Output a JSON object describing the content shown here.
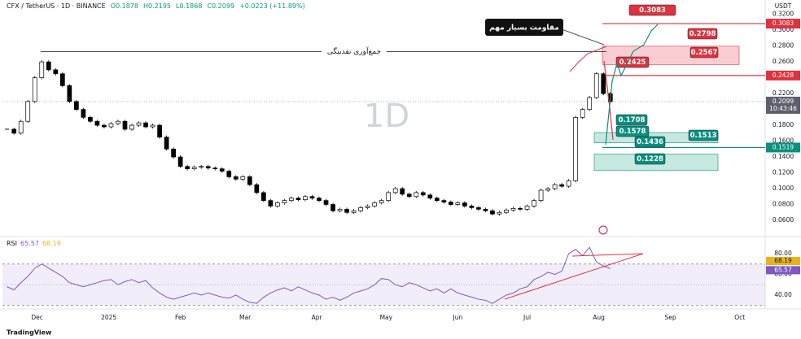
{
  "header": {
    "symbol": "CFX / TetherUS · 1D · BINANCE",
    "ohlc": [
      "O0.1878",
      "H0.2195",
      "L0.1868",
      "C0.2099"
    ],
    "change": "+0.0223 (+11.89%)"
  },
  "footer": "TradingView",
  "chart_data": [
    {
      "type": "candlestick",
      "watermark": "1D",
      "currency": "USDT",
      "up_color": "#ffffff",
      "down_color": "#000000",
      "x": [
        17,
        20,
        23,
        26,
        29,
        32,
        35,
        38,
        41,
        44,
        47,
        50,
        53,
        56,
        59,
        62,
        65,
        68,
        71,
        74,
        77,
        80,
        83,
        86,
        89,
        92,
        95,
        98,
        101,
        104,
        107,
        110,
        113,
        116,
        119,
        122,
        125,
        128,
        131,
        134,
        137,
        140,
        143,
        146,
        149,
        152,
        155,
        158,
        161,
        164,
        167,
        170,
        173,
        176,
        179,
        182,
        185,
        188,
        191,
        194,
        197,
        200,
        203,
        206,
        209,
        212,
        215,
        218,
        221,
        224,
        227,
        230,
        233,
        236,
        239,
        242,
        245,
        248,
        251,
        254,
        257,
        260,
        263,
        266,
        269,
        272,
        275,
        278
      ],
      "values": [
        0.175,
        0.17,
        0.185,
        0.21,
        0.24,
        0.26,
        0.25,
        0.245,
        0.23,
        0.21,
        0.2,
        0.19,
        0.185,
        0.18,
        0.178,
        0.182,
        0.185,
        0.175,
        0.18,
        0.183,
        0.178,
        0.18,
        0.165,
        0.15,
        0.14,
        0.128,
        0.125,
        0.127,
        0.128,
        0.126,
        0.125,
        0.122,
        0.115,
        0.112,
        0.115,
        0.105,
        0.095,
        0.085,
        0.078,
        0.082,
        0.085,
        0.088,
        0.086,
        0.09,
        0.088,
        0.085,
        0.08,
        0.072,
        0.074,
        0.07,
        0.072,
        0.076,
        0.078,
        0.082,
        0.085,
        0.095,
        0.1,
        0.093,
        0.09,
        0.095,
        0.092,
        0.088,
        0.085,
        0.083,
        0.08,
        0.082,
        0.078,
        0.076,
        0.074,
        0.072,
        0.068,
        0.07,
        0.073,
        0.075,
        0.074,
        0.078,
        0.085,
        0.098,
        0.1,
        0.105,
        0.103,
        0.11,
        0.19,
        0.2,
        0.215,
        0.245,
        0.22,
        0.2099
      ],
      "xlim": [
        15,
        345
      ],
      "xticks": [
        {
          "value": 30,
          "label": "Dec"
        },
        {
          "value": 61,
          "label": "2025"
        },
        {
          "value": 92,
          "label": "Feb"
        },
        {
          "value": 120,
          "label": "Mar"
        },
        {
          "value": 151,
          "label": "Apr"
        },
        {
          "value": 181,
          "label": "May"
        },
        {
          "value": 212,
          "label": "Jun"
        },
        {
          "value": 242,
          "label": "Jul"
        },
        {
          "value": 273,
          "label": "Aug"
        },
        {
          "value": 304,
          "label": "Sep"
        },
        {
          "value": 334,
          "label": "Oct"
        }
      ],
      "ylim": [
        0.0405,
        0.333
      ],
      "yticks": [
        {
          "value": 0.06,
          "label": "0.0600"
        },
        {
          "value": 0.08,
          "label": "0.0800"
        },
        {
          "value": 0.1,
          "label": "0.1000"
        },
        {
          "value": 0.12,
          "label": "0.1200"
        },
        {
          "value": 0.14,
          "label": "0.1400"
        },
        {
          "value": 0.16,
          "label": "0.1600"
        },
        {
          "value": 0.18,
          "label": "0.1800"
        },
        {
          "value": 0.22,
          "label": "0.2200"
        },
        {
          "value": 0.24,
          "label": "0.2400"
        },
        {
          "value": 0.26,
          "label": "0.2600"
        },
        {
          "value": 0.28,
          "label": "0.2800"
        },
        {
          "value": 0.3,
          "label": "0.3000"
        },
        {
          "value": 0.32,
          "label": "0.3200"
        }
      ],
      "hline": {
        "value": 0.273,
        "label": "جمع‌آوری نقدینگی"
      },
      "callout": "مقاومت بسیار مهم",
      "zones": [
        {
          "top": 0.2798,
          "bottom": 0.2567,
          "color": "#f9cdd2"
        },
        {
          "top": 0.1708,
          "bottom": 0.1578,
          "color": "#c5e8e1"
        },
        {
          "top": 0.1436,
          "bottom": 0.1228,
          "color": "#c5e8e1"
        }
      ],
      "price_lines": [
        {
          "value": 0.3083,
          "color": "#e0323e"
        },
        {
          "value": 0.2428,
          "color": "#e0323e"
        },
        {
          "value": 0.1519,
          "color": "#0b8f7e"
        }
      ],
      "last_price": 0.2099,
      "countdown": "10:43:46",
      "targets": [
        {
          "value": 0.3083,
          "color": "#e0323e"
        },
        {
          "value": 0.2798,
          "color": "#e0323e"
        },
        {
          "value": 0.2567,
          "color": "#e0323e"
        },
        {
          "value": 0.2425,
          "color": "#e0323e"
        },
        {
          "value": 0.1708,
          "color": "#0b8f7e"
        },
        {
          "value": 0.1578,
          "color": "#0b8f7e"
        },
        {
          "value": 0.1513,
          "color": "#0b8f7e"
        },
        {
          "value": 0.1436,
          "color": "#0b8f7e"
        },
        {
          "value": 0.1228,
          "color": "#0b8f7e"
        }
      ]
    },
    {
      "type": "line",
      "title": "RSI",
      "latest": 65.57,
      "ma": 68.19,
      "ma_color": "#e8b21c",
      "x": [
        17,
        20,
        23,
        26,
        29,
        32,
        35,
        38,
        41,
        44,
        47,
        50,
        53,
        56,
        59,
        62,
        65,
        68,
        71,
        74,
        77,
        80,
        83,
        86,
        89,
        92,
        95,
        98,
        101,
        104,
        107,
        110,
        113,
        116,
        119,
        122,
        125,
        128,
        131,
        134,
        137,
        140,
        143,
        146,
        149,
        152,
        155,
        158,
        161,
        164,
        167,
        170,
        173,
        176,
        179,
        182,
        185,
        188,
        191,
        194,
        197,
        200,
        203,
        206,
        209,
        212,
        215,
        218,
        221,
        224,
        227,
        230,
        233,
        236,
        239,
        242,
        245,
        248,
        251,
        254,
        257,
        260,
        263,
        266,
        269,
        272,
        275,
        278
      ],
      "series": [
        {
          "name": "RSI",
          "color": "#7e57c2",
          "values": [
            48,
            45,
            52,
            58,
            66,
            70,
            66,
            62,
            58,
            52,
            50,
            48,
            50,
            52,
            54,
            55,
            50,
            53,
            55,
            52,
            54,
            47,
            42,
            38,
            36,
            38,
            40,
            42,
            40,
            42,
            40,
            38,
            37,
            40,
            36,
            33,
            32,
            38,
            42,
            45,
            47,
            44,
            48,
            45,
            42,
            40,
            36,
            38,
            35,
            38,
            42,
            44,
            46,
            50,
            56,
            55,
            50,
            48,
            52,
            50,
            47,
            44,
            46,
            42,
            46,
            42,
            40,
            38,
            36,
            35,
            32,
            36,
            40,
            42,
            46,
            48,
            55,
            58,
            62,
            60,
            63,
            80,
            84,
            78,
            86,
            72,
            68,
            65.57
          ]
        }
      ],
      "bands": {
        "upper": 70,
        "middle": 50,
        "lower": 30
      },
      "ylim": [
        28.2,
        94.9
      ],
      "yticks": [
        {
          "value": 40,
          "label": "40.00"
        },
        {
          "value": 60,
          "label": "60.00"
        },
        {
          "value": 80,
          "label": "80.00"
        }
      ]
    }
  ]
}
